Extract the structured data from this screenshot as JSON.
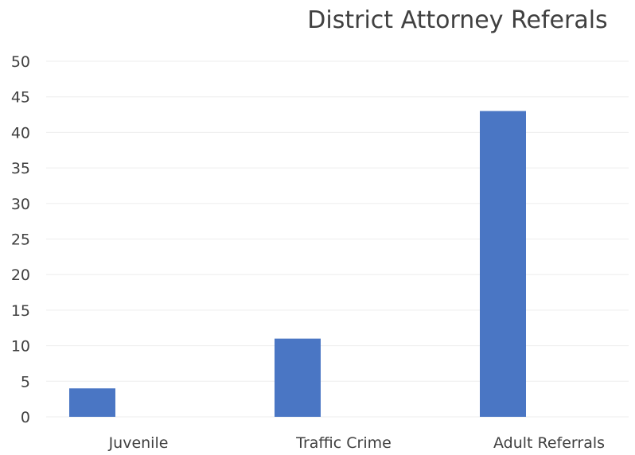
{
  "chart_data": {
    "type": "bar",
    "title": "District Attorney Referals",
    "xlabel": "",
    "ylabel": "",
    "categories": [
      "Juvenile",
      "Traffic Crime",
      "Adult Referrals"
    ],
    "values": [
      4,
      11,
      43
    ],
    "ylim": [
      0,
      50
    ],
    "yticks": [
      0,
      5,
      10,
      15,
      20,
      25,
      30,
      35,
      40,
      45,
      50
    ],
    "grid": true,
    "legend": "none",
    "bar_color": "#4a76c4",
    "grid_color": "#ededed",
    "text_color": "#404040"
  }
}
